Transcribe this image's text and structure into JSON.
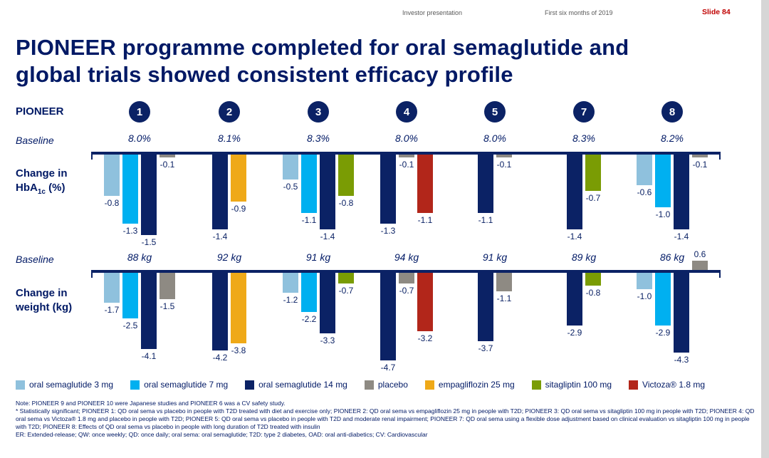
{
  "page": {
    "header": {
      "left": "Investor presentation",
      "center": "First six months of 2019",
      "slide": "Slide 84"
    },
    "title_lines": [
      "PIONEER programme completed for oral semaglutide and",
      "global trials showed consistent efficacy profile"
    ],
    "row_labels": {
      "pioneer": "PIONEER",
      "baseline": "Baseline",
      "change_in": "Change in",
      "hba1c_main": "HbA",
      "hba1c_sub": "1c",
      "hba1c_suffix": " (%)",
      "weight_line2": "weight (kg)"
    },
    "notes": [
      "Note: PIONEER 9 and PIONEER 10 were Japanese studies and PIONEER 6 was a CV safety study.",
      "* Statistically significant; PIONEER 1: QD oral sema vs placebo in people with T2D treated with diet and exercise only; PIONEER 2: QD oral sema vs empagliflozin 25 mg in people with T2D; PIONEER 3: QD oral sema vs sitagliptin 100 mg in people with T2D; PIONEER 4: QD oral sema vs Victoza® 1.8 mg and placebo in people with T2D; PIONEER 5: QD oral sema vs placebo in people with T2D and moderate renal impairment; PIONEER 7: QD oral sema using a flexible dose adjustment based on clinical evaluation vs sitagliptin 100 mg in people with T2D; PIONEER 8: Effects of QD oral sema vs placebo in people with long duration of T2D treated with insulin",
      "ER: Extended-release; QW: once weekly; QD: once daily; oral sema: oral semaglutide; T2D: type 2 diabetes, OAD: oral anti-diabetics; CV: Cardiovascular"
    ]
  },
  "legend": [
    {
      "key": "sema3",
      "label": "oral semaglutide 3 mg",
      "color": "#8fc1dd"
    },
    {
      "key": "sema7",
      "label": "oral semaglutide 7 mg",
      "color": "#00b0f0"
    },
    {
      "key": "sema14",
      "label": "oral semaglutide 14 mg",
      "color": "#0b2265"
    },
    {
      "key": "placebo",
      "label": "placebo",
      "color": "#8e8a83"
    },
    {
      "key": "empa",
      "label": "empagliflozin 25 mg",
      "color": "#efa918"
    },
    {
      "key": "sita",
      "label": "sitagliptin 100 mg",
      "color": "#7a9c04"
    },
    {
      "key": "victoza",
      "label": "Victoza® 1.8 mg",
      "color": "#b2261a"
    }
  ],
  "chart_data": [
    {
      "type": "bar",
      "title": "Change in HbA1c (%)",
      "trials": [
        "1",
        "2",
        "3",
        "4",
        "5",
        "7",
        "8"
      ],
      "baselines": [
        "8.0%",
        "8.1%",
        "8.3%",
        "8.0%",
        "8.0%",
        "8.3%",
        "8.2%"
      ],
      "groups": [
        [
          {
            "series": "sema3",
            "value": -0.8
          },
          {
            "series": "sema7",
            "value": -1.3
          },
          {
            "series": "sema14",
            "value": -1.5
          },
          {
            "series": "placebo",
            "value": -0.1
          }
        ],
        [
          {
            "series": "sema14",
            "value": -1.4
          },
          {
            "series": "empa",
            "value": -0.9
          }
        ],
        [
          {
            "series": "sema3",
            "value": -0.5
          },
          {
            "series": "sema7",
            "value": -1.1
          },
          {
            "series": "sema14",
            "value": -1.4
          },
          {
            "series": "sita",
            "value": -0.8
          }
        ],
        [
          {
            "series": "sema14",
            "value": -1.3
          },
          {
            "series": "placebo",
            "value": -0.1
          },
          {
            "series": "victoza",
            "value": -1.1
          }
        ],
        [
          {
            "series": "sema14",
            "value": -1.1
          },
          {
            "series": "placebo",
            "value": -0.1
          }
        ],
        [
          {
            "series": "sema14",
            "value": -1.4
          },
          {
            "series": "sita",
            "value": -0.7
          }
        ],
        [
          {
            "series": "sema3",
            "value": -0.6
          },
          {
            "series": "sema7",
            "value": -1.0
          },
          {
            "series": "sema14",
            "value": -1.4
          },
          {
            "series": "placebo",
            "value": -0.1
          }
        ]
      ]
    },
    {
      "type": "bar",
      "title": "Change in weight (kg)",
      "trials": [
        "1",
        "2",
        "3",
        "4",
        "5",
        "7",
        "8"
      ],
      "baselines": [
        "88 kg",
        "92 kg",
        "91 kg",
        "94 kg",
        "91 kg",
        "89 kg",
        "86 kg"
      ],
      "groups": [
        [
          {
            "series": "sema3",
            "value": -1.7
          },
          {
            "series": "sema7",
            "value": -2.5
          },
          {
            "series": "sema14",
            "value": -4.1
          },
          {
            "series": "placebo",
            "value": -1.5
          }
        ],
        [
          {
            "series": "sema14",
            "value": -4.2
          },
          {
            "series": "empa",
            "value": -3.8
          }
        ],
        [
          {
            "series": "sema3",
            "value": -1.2
          },
          {
            "series": "sema7",
            "value": -2.2
          },
          {
            "series": "sema14",
            "value": -3.3
          },
          {
            "series": "sita",
            "value": -0.7
          }
        ],
        [
          {
            "series": "sema14",
            "value": -4.7
          },
          {
            "series": "placebo",
            "value": -0.7
          },
          {
            "series": "victoza",
            "value": -3.2
          }
        ],
        [
          {
            "series": "sema14",
            "value": -3.7
          },
          {
            "series": "placebo",
            "value": -1.1
          }
        ],
        [
          {
            "series": "sema14",
            "value": -2.9
          },
          {
            "series": "sita",
            "value": -0.8
          }
        ],
        [
          {
            "series": "sema3",
            "value": -1.0
          },
          {
            "series": "sema7",
            "value": -2.9
          },
          {
            "series": "sema14",
            "value": -4.3
          },
          {
            "series": "placebo",
            "value": 0.6
          }
        ]
      ]
    }
  ]
}
